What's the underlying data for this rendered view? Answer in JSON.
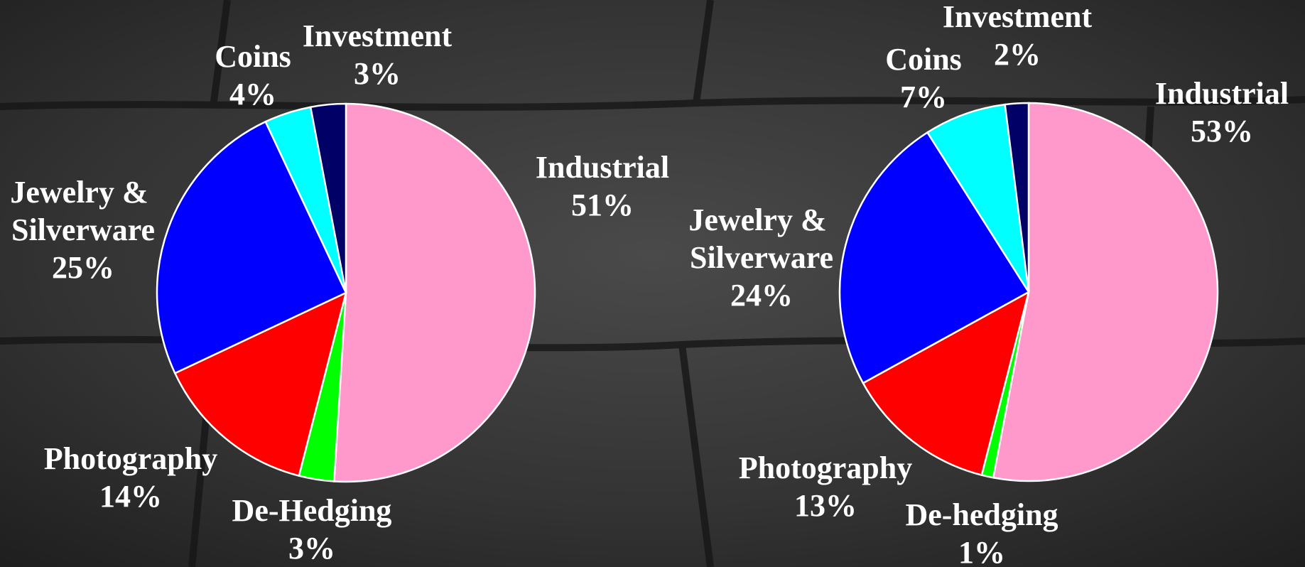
{
  "chart_data": [
    {
      "type": "pie",
      "categories": [
        "Industrial",
        "De-Hedging",
        "Photography",
        "Jewelry & Silverware",
        "Coins",
        "Investment"
      ],
      "values": [
        51,
        3,
        14,
        25,
        4,
        3
      ],
      "value_labels": [
        "51%",
        "3%",
        "14%",
        "25%",
        "4%",
        "3%"
      ],
      "colors": [
        "#ff99cc",
        "#00ff00",
        "#ff0000",
        "#0000ff",
        "#00ffff",
        "#000066"
      ]
    },
    {
      "type": "pie",
      "categories": [
        "Industrial",
        "De-hedging",
        "Photography",
        "Jewelry & Silverware",
        "Coins",
        "Investment"
      ],
      "values": [
        53,
        1,
        13,
        24,
        7,
        2
      ],
      "value_labels": [
        "53%",
        "1%",
        "13%",
        "24%",
        "7%",
        "2%"
      ],
      "colors": [
        "#ff99cc",
        "#00ff00",
        "#ff0000",
        "#0000ff",
        "#00ffff",
        "#000066"
      ]
    }
  ]
}
